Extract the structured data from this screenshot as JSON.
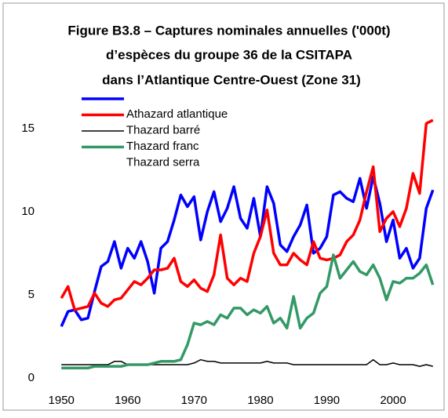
{
  "chart_data": {
    "type": "line",
    "title_lines": [
      "Figure B3.8 – Captures nominales annuelles ('000t)",
      "d’espèces du groupe 36 de la CSITAPA",
      "dans l’Atlantique Centre-Ouest (Zone 31)"
    ],
    "x": [
      1950,
      1951,
      1952,
      1953,
      1954,
      1955,
      1956,
      1957,
      1958,
      1959,
      1960,
      1961,
      1962,
      1963,
      1964,
      1965,
      1966,
      1967,
      1968,
      1969,
      1970,
      1971,
      1972,
      1973,
      1974,
      1975,
      1976,
      1977,
      1978,
      1979,
      1980,
      1981,
      1982,
      1983,
      1984,
      1985,
      1986,
      1987,
      1988,
      1989,
      1990,
      1991,
      1992,
      1993,
      1994,
      1995,
      1996,
      1997,
      1998,
      1999,
      2000,
      2001,
      2002,
      2003,
      2004,
      2005,
      2006
    ],
    "series": [
      {
        "name": "Athazard atlantique",
        "color": "#0000ff",
        "values": [
          3.1,
          4.0,
          4.1,
          3.5,
          3.6,
          5.2,
          6.7,
          7.0,
          8.2,
          6.6,
          7.8,
          7.2,
          8.2,
          7.0,
          5.1,
          7.8,
          8.2,
          9.5,
          11.0,
          10.3,
          10.9,
          8.3,
          10.0,
          11.2,
          9.4,
          10.2,
          11.5,
          9.6,
          9.0,
          10.8,
          8.5,
          11.5,
          10.5,
          8.0,
          7.6,
          8.5,
          9.2,
          10.4,
          7.5,
          7.8,
          8.5,
          11.0,
          11.2,
          10.8,
          10.6,
          12.0,
          10.2,
          12.1,
          10.5,
          8.2,
          9.5,
          7.2,
          7.8,
          6.6,
          7.2,
          10.2,
          11.3
        ]
      },
      {
        "name": "Thazard barré",
        "color": "#ff0000",
        "values": [
          4.8,
          5.5,
          4.1,
          4.2,
          4.3,
          5.1,
          4.5,
          4.3,
          4.7,
          4.8,
          5.3,
          5.8,
          5.6,
          6.0,
          6.5,
          6.5,
          6.6,
          7.2,
          5.8,
          5.5,
          5.9,
          5.4,
          5.2,
          6.2,
          8.6,
          6.0,
          5.6,
          6.0,
          5.8,
          7.5,
          8.5,
          10.1,
          7.5,
          6.8,
          6.8,
          7.5,
          7.1,
          6.8,
          8.2,
          7.2,
          7.1,
          7.2,
          7.4,
          8.2,
          8.6,
          9.5,
          11.2,
          12.7,
          8.8,
          9.6,
          10.0,
          9.1,
          10.2,
          12.3,
          11.1,
          15.3,
          15.5
        ]
      },
      {
        "name": "Thazard franc",
        "color": "#000000",
        "values": [
          0.8,
          0.8,
          0.8,
          0.8,
          0.8,
          0.8,
          0.8,
          0.8,
          1.0,
          1.0,
          0.8,
          0.8,
          0.8,
          0.8,
          0.8,
          0.8,
          0.8,
          0.8,
          0.8,
          0.8,
          0.9,
          1.1,
          1.0,
          1.0,
          0.9,
          0.9,
          0.9,
          0.9,
          0.9,
          0.9,
          0.9,
          1.0,
          0.9,
          0.9,
          0.9,
          0.8,
          0.8,
          0.8,
          0.8,
          0.8,
          0.8,
          0.8,
          0.8,
          0.8,
          0.8,
          0.8,
          0.8,
          1.1,
          0.8,
          0.8,
          0.9,
          0.8,
          0.8,
          0.8,
          0.7,
          0.8,
          0.7
        ]
      },
      {
        "name": "Thazard serra",
        "color": "#339966",
        "values": [
          0.6,
          0.6,
          0.6,
          0.6,
          0.6,
          0.7,
          0.7,
          0.7,
          0.7,
          0.7,
          0.8,
          0.8,
          0.8,
          0.8,
          0.9,
          1.0,
          1.0,
          1.0,
          1.1,
          2.0,
          3.3,
          3.2,
          3.4,
          3.2,
          3.8,
          3.6,
          4.2,
          4.2,
          3.8,
          4.1,
          3.9,
          4.3,
          3.3,
          3.6,
          3.0,
          4.9,
          3.0,
          3.6,
          3.9,
          5.1,
          5.5,
          7.4,
          6.0,
          6.5,
          7.0,
          6.4,
          6.2,
          6.8,
          6.0,
          4.7,
          5.8,
          5.7,
          6.0,
          6.0,
          6.3,
          6.8,
          5.6
        ]
      }
    ],
    "xlim": [
      1949.5,
      2006.5
    ],
    "xticks": [
      1950,
      1960,
      1970,
      1980,
      1990,
      2000
    ],
    "ylim": [
      0,
      16.5
    ],
    "yticks": [
      0,
      5,
      10,
      15
    ]
  }
}
